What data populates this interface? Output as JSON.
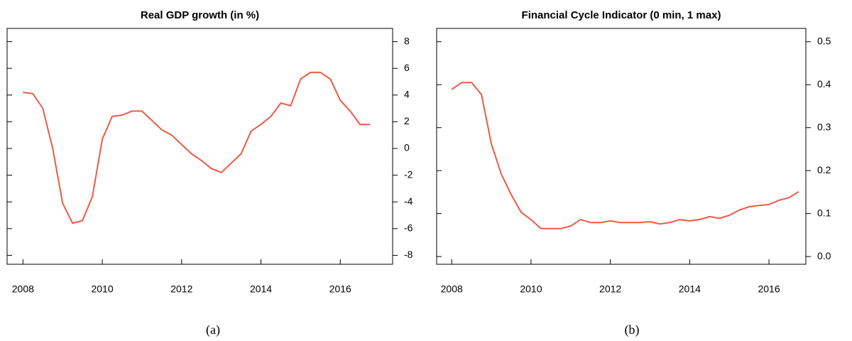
{
  "chart_data": [
    {
      "type": "line",
      "title": "Real GDP growth (in %)",
      "caption": "(a)",
      "color": "#ee5a45",
      "x": [
        2008,
        2008.25,
        2008.5,
        2008.75,
        2009,
        2009.25,
        2009.5,
        2009.75,
        2010,
        2010.25,
        2010.5,
        2010.75,
        2011,
        2011.25,
        2011.5,
        2011.75,
        2012,
        2012.25,
        2012.5,
        2012.75,
        2013,
        2013.25,
        2013.5,
        2013.75,
        2014,
        2014.25,
        2014.5,
        2014.75,
        2015,
        2015.25,
        2015.5,
        2015.75,
        2016,
        2016.25,
        2016.5,
        2016.75
      ],
      "values": [
        4.2,
        4.1,
        3.0,
        0.0,
        -4.1,
        -5.6,
        -5.4,
        -3.6,
        0.7,
        2.4,
        2.5,
        2.8,
        2.8,
        2.1,
        1.4,
        1.0,
        0.3,
        -0.4,
        -0.9,
        -1.5,
        -1.8,
        -1.1,
        -0.4,
        1.3,
        1.8,
        2.4,
        3.4,
        3.2,
        5.2,
        5.7,
        5.7,
        5.2,
        3.6,
        2.8,
        1.8,
        1.8
      ],
      "xlim": [
        2007.6,
        2017.32
      ],
      "xticks": [
        2008,
        2010,
        2012,
        2014,
        2016
      ],
      "ylim": [
        -8.67,
        8.99
      ],
      "yticks": [
        -8,
        -6,
        -4,
        -2,
        0,
        2,
        4,
        6,
        8
      ]
    },
    {
      "type": "line",
      "title": "Financial Cycle Indicator (0 min, 1 max)",
      "caption": "(b)",
      "color": "#ee5a45",
      "x": [
        2008,
        2008.25,
        2008.5,
        2008.75,
        2009,
        2009.25,
        2009.5,
        2009.75,
        2010,
        2010.25,
        2010.5,
        2010.75,
        2011,
        2011.25,
        2011.5,
        2011.75,
        2012,
        2012.25,
        2012.5,
        2012.75,
        2013,
        2013.25,
        2013.5,
        2013.75,
        2014,
        2014.25,
        2014.5,
        2014.75,
        2015,
        2015.25,
        2015.5,
        2015.75,
        2016,
        2016.25,
        2016.5,
        2016.75
      ],
      "values": [
        0.389,
        0.405,
        0.405,
        0.377,
        0.262,
        0.192,
        0.144,
        0.103,
        0.086,
        0.065,
        0.065,
        0.065,
        0.071,
        0.086,
        0.079,
        0.079,
        0.083,
        0.079,
        0.079,
        0.079,
        0.081,
        0.076,
        0.079,
        0.086,
        0.083,
        0.086,
        0.093,
        0.089,
        0.096,
        0.108,
        0.116,
        0.119,
        0.121,
        0.131,
        0.137,
        0.151
      ],
      "xlim": [
        2007.62,
        2016.93
      ],
      "xticks": [
        2008,
        2010,
        2012,
        2014,
        2016
      ],
      "ylim": [
        -0.018,
        0.531
      ],
      "yticks": [
        0.0,
        0.1,
        0.2,
        0.3,
        0.4,
        0.5
      ]
    }
  ]
}
